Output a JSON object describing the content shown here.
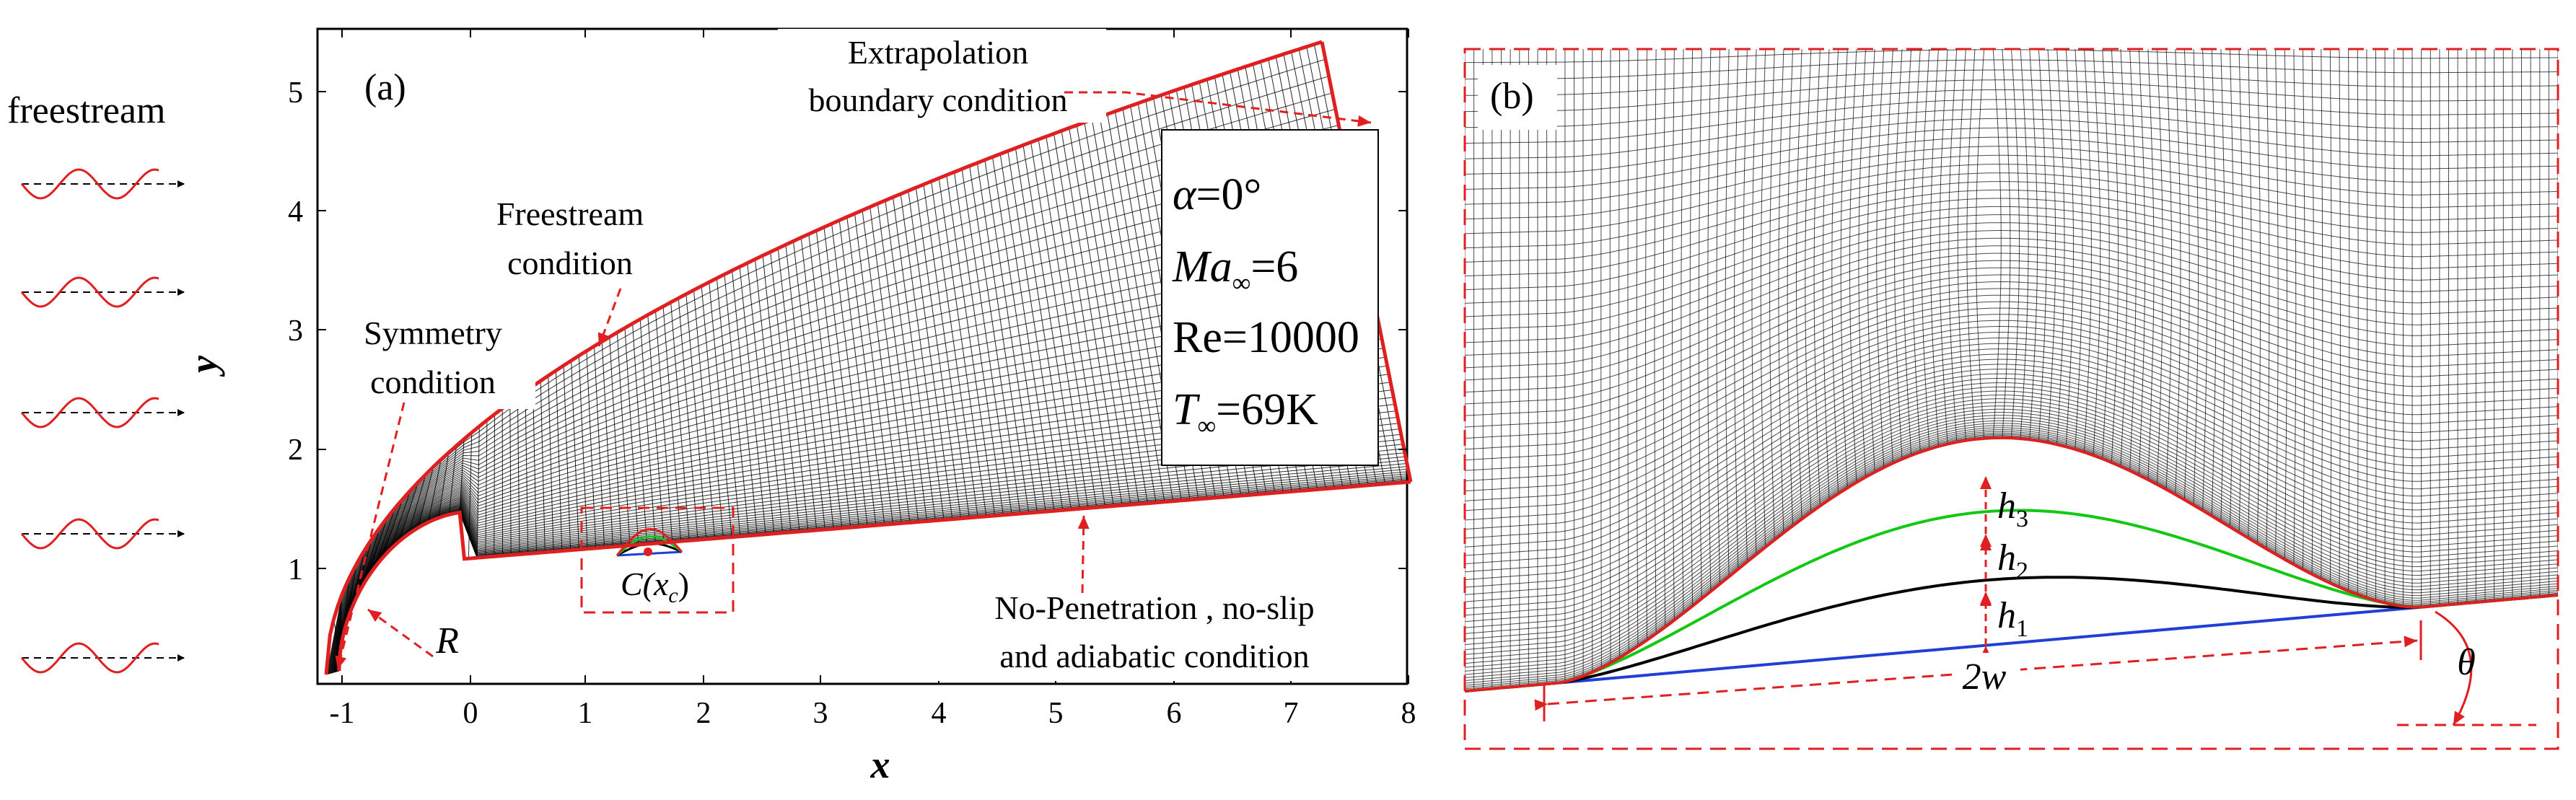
{
  "freestream": {
    "label": "freestream"
  },
  "panel_a": {
    "tag": "(a)",
    "x_label": "x",
    "y_label": "y",
    "x_ticks": [
      "-1",
      "0",
      "1",
      "2",
      "3",
      "4",
      "5",
      "6",
      "7",
      "8"
    ],
    "y_ticks": [
      "1",
      "2",
      "3",
      "4",
      "5"
    ],
    "annotations": {
      "extrapolation_line1": "Extrapolation",
      "extrapolation_line2": "boundary condition",
      "freestream_cond_line1": "Freestream",
      "freestream_cond_line2": "condition",
      "symmetry_line1": "Symmetry",
      "symmetry_line2": "condition",
      "wall_line1": "No-Penetration , no-slip",
      "wall_line2": "and adiabatic condition",
      "radius": "R",
      "center_main": "C(x",
      "center_sub": "c",
      "center_close": ")"
    },
    "parameters": {
      "alpha_sym": "α",
      "alpha_val": "=0°",
      "ma_sym": "Ma",
      "ma_sub": "∞",
      "ma_val": "=6",
      "re": "Re=10000",
      "t_sym": "T",
      "t_sub": "∞",
      "t_val": "=69K"
    }
  },
  "panel_b": {
    "tag": "(b)",
    "h_sym": "h",
    "h1_sub": "1",
    "h2_sub": "2",
    "h3_sub": "3",
    "width_label": "2w",
    "theta": "θ"
  },
  "colors": {
    "boundary": "#e02020",
    "grid": "#000000",
    "green": "#12c812",
    "blue": "#1f3fd6"
  }
}
